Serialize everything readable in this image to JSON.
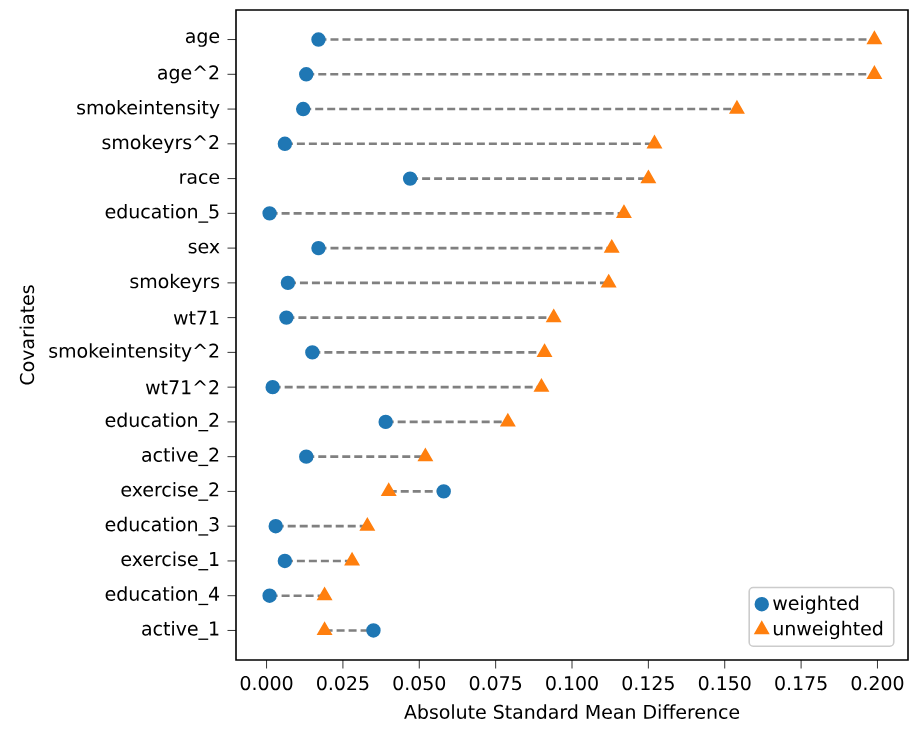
{
  "chart_data": {
    "type": "scatter",
    "orientation": "horizontal",
    "xlabel": "Absolute Standard Mean Difference",
    "ylabel": "Covariates",
    "categories": [
      "age",
      "age^2",
      "smokeintensity",
      "smokeyrs^2",
      "race",
      "education_5",
      "sex",
      "smokeyrs",
      "wt71",
      "smokeintensity^2",
      "wt71^2",
      "education_2",
      "active_2",
      "exercise_2",
      "education_3",
      "exercise_1",
      "education_4",
      "active_1"
    ],
    "series": [
      {
        "name": "weighted",
        "color": "#1f77b4",
        "marker": "circle",
        "values": [
          0.017,
          0.013,
          0.012,
          0.006,
          0.047,
          0.001,
          0.017,
          0.007,
          0.0065,
          0.015,
          0.002,
          0.039,
          0.013,
          0.058,
          0.003,
          0.006,
          0.001,
          0.035
        ]
      },
      {
        "name": "unweighted",
        "color": "#ff7f0e",
        "marker": "triangle",
        "values": [
          0.199,
          0.199,
          0.154,
          0.127,
          0.125,
          0.117,
          0.113,
          0.112,
          0.094,
          0.091,
          0.09,
          0.079,
          0.052,
          0.04,
          0.033,
          0.028,
          0.019,
          0.019
        ]
      }
    ],
    "line_style": "dashed",
    "xlim": [
      -0.01,
      0.21
    ],
    "xticks": [
      {
        "value": 0,
        "label": "0.000"
      },
      {
        "value": 0.025,
        "label": "0.025"
      },
      {
        "value": 0.05,
        "label": "0.050"
      },
      {
        "value": 0.075,
        "label": "0.075"
      },
      {
        "value": 0.1,
        "label": "0.100"
      },
      {
        "value": 0.125,
        "label": "0.125"
      },
      {
        "value": 0.15,
        "label": "0.150"
      },
      {
        "value": 0.175,
        "label": "0.175"
      },
      {
        "value": 0.2,
        "label": "0.200"
      }
    ],
    "legend": "bottom right",
    "grid": false
  }
}
